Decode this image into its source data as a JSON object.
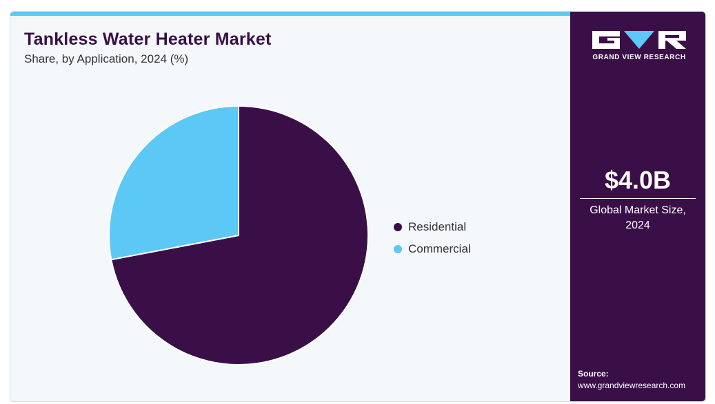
{
  "header": {
    "title": "Tankless Water Heater Market",
    "subtitle": "Share, by Application, 2024 (%)"
  },
  "chart_data": {
    "type": "pie",
    "title": "Tankless Water Heater Market",
    "subtitle": "Share, by Application, 2024 (%)",
    "categories": [
      "Residential",
      "Commercial"
    ],
    "values": [
      72,
      28
    ],
    "colors": [
      "#3a0f48",
      "#5bc8f5"
    ],
    "start_angle": "12 o'clock",
    "direction": "clockwise",
    "legend": {
      "position": "right",
      "items": [
        {
          "label": "Residential",
          "color": "#3a0f48"
        },
        {
          "label": "Commercial",
          "color": "#5bc8f5"
        }
      ]
    }
  },
  "sidebar": {
    "brand": "GRAND VIEW RESEARCH",
    "market_size_value": "$4.0B",
    "market_size_label": "Global Market Size, 2024",
    "source_label": "Source:",
    "source_url": "www.grandviewresearch.com",
    "colors": {
      "background": "#3a0f48",
      "text": "#ffffff"
    }
  },
  "colors": {
    "accent_bar": "#5bc8f5",
    "panel_background": "#f4f8fb",
    "title": "#3a0f48"
  }
}
